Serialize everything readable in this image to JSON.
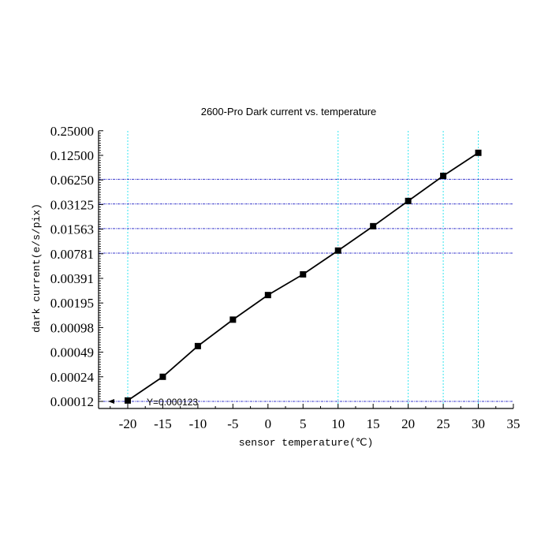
{
  "chart_data": {
    "type": "line",
    "title": "2600-Pro Dark current vs. temperature",
    "xlabel": "sensor temperature(℃)",
    "ylabel": "dark current(e/s/pix)",
    "x_scale": "linear",
    "y_scale": "log2",
    "xlim": [
      -24,
      35
    ],
    "ylim": [
      0.00012,
      0.25
    ],
    "x_ticks": [
      -20,
      -15,
      -10,
      -5,
      0,
      5,
      10,
      15,
      20,
      25,
      30,
      35
    ],
    "y_ticks": [
      "0.00012",
      "0.00024",
      "0.00049",
      "0.00098",
      "0.00195",
      "0.00391",
      "0.00781",
      "0.01563",
      "0.03125",
      "0.06250",
      "0.12500",
      "0.25000"
    ],
    "grid": {
      "vertical_cyan_at_x": [
        -20,
        10,
        20,
        25,
        30
      ],
      "horizontal_blue_at_y": [
        "0.00012",
        "0.00781",
        "0.01563",
        "0.03125",
        "0.06250"
      ]
    },
    "series": [
      {
        "name": "Dark current",
        "marker": "square",
        "color": "#000000",
        "x": [
          -20,
          -15,
          -10,
          -5,
          0,
          5,
          10,
          15,
          20,
          25,
          30
        ],
        "values": [
          0.000123,
          0.00024,
          0.00057,
          0.0012,
          0.0024,
          0.0043,
          0.0084,
          0.0167,
          0.034,
          0.069,
          0.132
        ]
      }
    ],
    "annotations": [
      {
        "text": "Y=0.000123",
        "x": -20,
        "y": 0.000123
      }
    ],
    "legend": "none"
  },
  "colors": {
    "vgrid": "#33e6f0",
    "hgrid": "#3a3acc",
    "line": "#000000"
  }
}
